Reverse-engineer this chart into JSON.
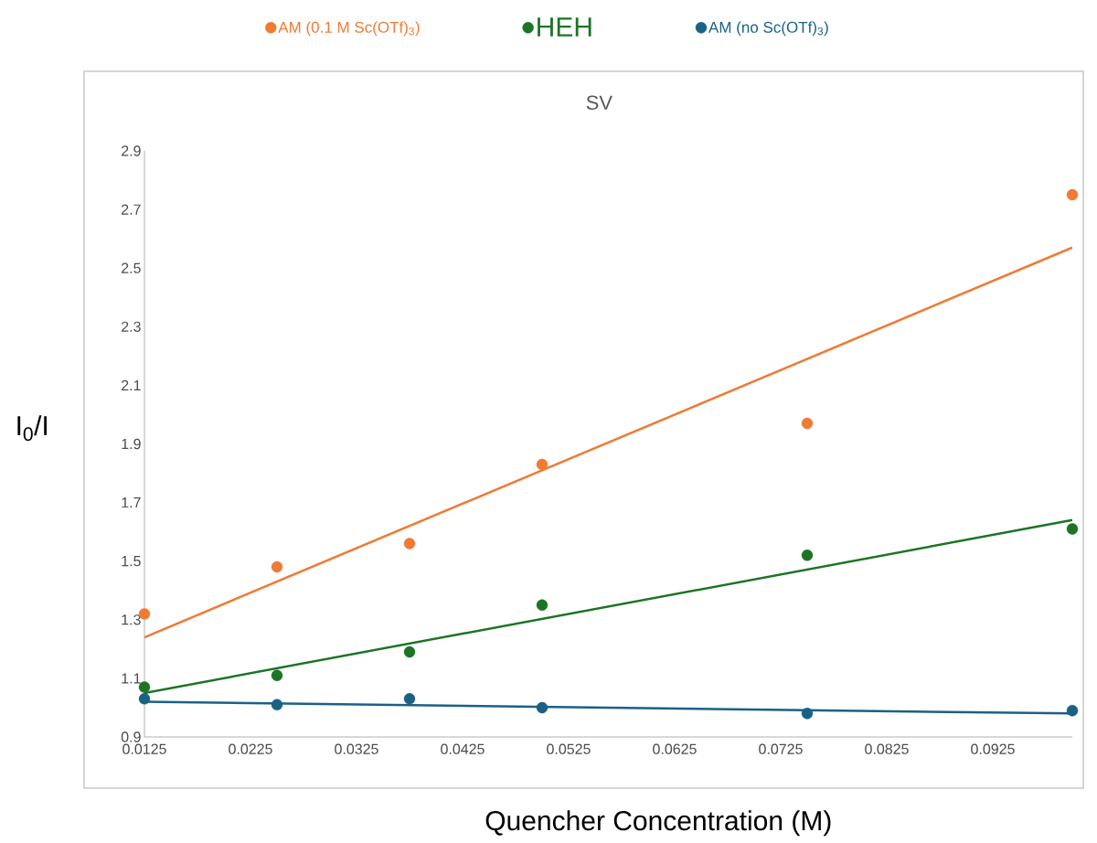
{
  "chart_data": {
    "type": "scatter",
    "title": "SV",
    "xlabel": "Quencher Concentration (M)",
    "ylabel": "I$_{0}$/I",
    "xlim": [
      0.0125,
      0.1
    ],
    "xticks": [
      0.0125,
      0.0225,
      0.0325,
      0.0425,
      0.0525,
      0.0625,
      0.0725,
      0.0825,
      0.0925
    ],
    "ylim": [
      0.9,
      2.9
    ],
    "yticks": [
      0.9,
      1.1,
      1.3,
      1.5,
      1.7,
      1.9,
      2.1,
      2.3,
      2.5,
      2.7,
      2.9
    ],
    "grid": false,
    "legend": "top",
    "series": [
      {
        "name": "AM (0.1 M Sc(OTf)$_{3}$)",
        "type": "scatter",
        "marker": "circle",
        "color": "#ef7b35",
        "x": [
          0.0125,
          0.025,
          0.0375,
          0.05,
          0.075,
          0.1
        ],
        "values": [
          1.32,
          1.48,
          1.56,
          1.83,
          1.97,
          2.75
        ]
      },
      {
        "name": "HEH",
        "type": "scatter",
        "marker": "circle",
        "color": "#1c7424",
        "x": [
          0.0125,
          0.025,
          0.0375,
          0.05,
          0.075,
          0.1
        ],
        "values": [
          1.07,
          1.11,
          1.19,
          1.35,
          1.52,
          1.61
        ]
      },
      {
        "name": "AM (no Sc(OTf)$_{3}$)",
        "type": "scatter",
        "marker": "circle",
        "color": "#1a6186",
        "x": [
          0.0125,
          0.025,
          0.0375,
          0.05,
          0.075,
          0.1
        ],
        "values": [
          1.03,
          1.01,
          1.03,
          1.0,
          0.98,
          0.99
        ]
      },
      {
        "type": "line",
        "marker": "none",
        "color": "#ef7b35",
        "x": [
          0.0125,
          0.1
        ],
        "values": [
          1.24,
          2.57
        ]
      },
      {
        "type": "line",
        "marker": "none",
        "color": "#1c7424",
        "x": [
          0.0125,
          0.1
        ],
        "values": [
          1.05,
          1.64
        ]
      },
      {
        "type": "line",
        "marker": "none",
        "color": "#1a6186",
        "x": [
          0.0125,
          0.1
        ],
        "values": [
          1.02,
          0.98
        ]
      }
    ]
  }
}
